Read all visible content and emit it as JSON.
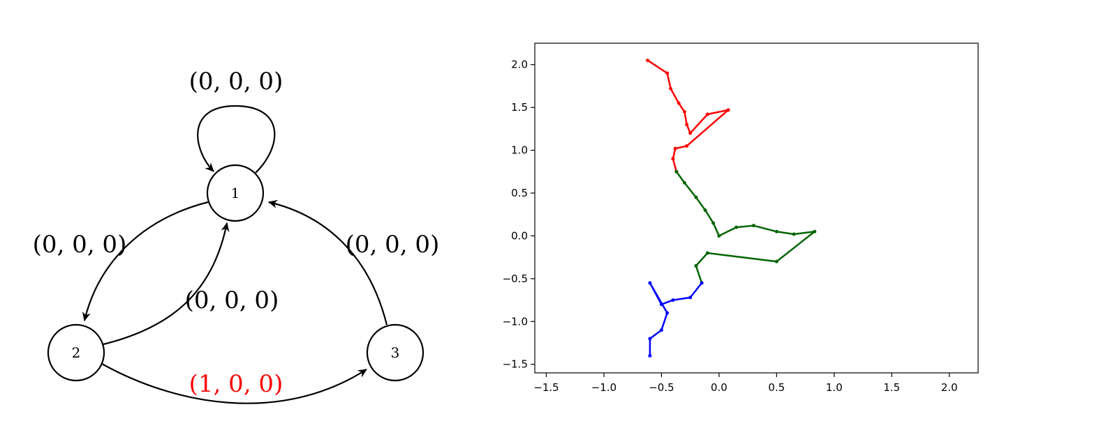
{
  "diagram": {
    "nodes": [
      {
        "id": "1",
        "label": "1"
      },
      {
        "id": "2",
        "label": "2"
      },
      {
        "id": "3",
        "label": "3"
      }
    ],
    "edges": [
      {
        "from": "1",
        "to": "1",
        "label": "(0, 0, 0)",
        "color": "#000000"
      },
      {
        "from": "1",
        "to": "2",
        "label": "(0, 0, 0)",
        "color": "#000000"
      },
      {
        "from": "2",
        "to": "1",
        "label": "(0, 0, 0)",
        "color": "#000000"
      },
      {
        "from": "3",
        "to": "1",
        "label": "(0, 0, 0)",
        "color": "#000000"
      },
      {
        "from": "2",
        "to": "3",
        "label": "(1, 0, 0)",
        "color": "#ff0000"
      }
    ]
  },
  "chart_data": {
    "type": "scatter",
    "title": "",
    "xlabel": "",
    "ylabel": "",
    "xlim": [
      -1.6,
      2.25
    ],
    "ylim": [
      -1.6,
      2.25
    ],
    "xticks": [
      -1.5,
      -1.0,
      -0.5,
      0.0,
      0.5,
      1.0,
      1.5,
      2.0
    ],
    "yticks": [
      -1.5,
      -1.0,
      -0.5,
      0.0,
      0.5,
      1.0,
      1.5,
      2.0
    ],
    "xtick_labels": [
      "−1.5",
      "−1.0",
      "−0.5",
      "0.0",
      "0.5",
      "1.0",
      "1.5",
      "2.0"
    ],
    "ytick_labels": [
      "−1.5",
      "−1.0",
      "−0.5",
      "0.0",
      "0.5",
      "1.0",
      "1.5",
      "2.0"
    ],
    "grid": false,
    "series": [
      {
        "color": "#ff0000",
        "x": [
          -0.62,
          -0.45,
          -0.42,
          -0.35,
          -0.3,
          -0.28,
          -0.25,
          -0.1,
          0.08,
          -0.28,
          -0.38,
          -0.4,
          -0.37
        ],
        "y": [
          2.05,
          1.9,
          1.72,
          1.55,
          1.45,
          1.3,
          1.2,
          1.42,
          1.47,
          1.05,
          1.02,
          0.9,
          0.75
        ]
      },
      {
        "color": "#006400",
        "x": [
          -0.37,
          -0.3,
          -0.2,
          -0.12,
          -0.05,
          0.0,
          0.15,
          0.3,
          0.5,
          0.65,
          0.83,
          0.5,
          -0.1,
          -0.2,
          -0.15
        ],
        "y": [
          0.75,
          0.62,
          0.45,
          0.3,
          0.15,
          0.0,
          0.1,
          0.12,
          0.05,
          0.02,
          0.05,
          -0.3,
          -0.2,
          -0.35,
          -0.55
        ]
      },
      {
        "color": "#0000ff",
        "x": [
          -0.15,
          -0.25,
          -0.4,
          -0.5,
          -0.6,
          -0.45,
          -0.5,
          -0.6,
          -0.6
        ],
        "y": [
          -0.55,
          -0.72,
          -0.75,
          -0.8,
          -0.55,
          -0.9,
          -1.1,
          -1.2,
          -1.4
        ]
      }
    ]
  }
}
